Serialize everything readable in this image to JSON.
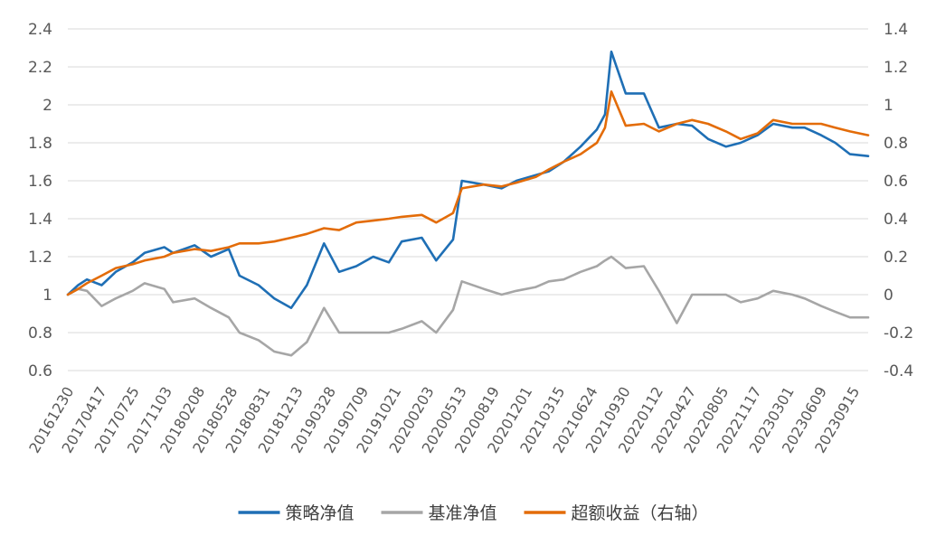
{
  "chart_data": {
    "type": "line",
    "title": "",
    "xlabel": "",
    "ylabel": "",
    "y2label": "",
    "grid": true,
    "legend_position": "bottom",
    "ylim": [
      0.6,
      2.4
    ],
    "y2lim": [
      -0.4,
      1.4
    ],
    "yticks": [
      "0.6",
      "0.8",
      "1",
      "1.2",
      "1.4",
      "1.6",
      "1.8",
      "2",
      "2.2",
      "2.4"
    ],
    "y2ticks": [
      "-0.4",
      "-0.2",
      "0",
      "0.2",
      "0.4",
      "0.6",
      "0.8",
      "1",
      "1.2",
      "1.4"
    ],
    "x_tick_labels": [
      "20161230",
      "20170417",
      "20170725",
      "20171103",
      "20180208",
      "20180528",
      "20180831",
      "20181213",
      "20190328",
      "20190709",
      "20191021",
      "20200203",
      "20200513",
      "20200819",
      "20201201",
      "20210315",
      "20210624",
      "20210930",
      "20220112",
      "20220427",
      "20220805",
      "20221117",
      "20230301",
      "20230609",
      "20230915"
    ],
    "x": [
      "20161230",
      "20170201",
      "20170301",
      "20170417",
      "20170601",
      "20170725",
      "20170901",
      "20171103",
      "20171201",
      "20180208",
      "20180401",
      "20180528",
      "20180701",
      "20180831",
      "20181020",
      "20181213",
      "20190201",
      "20190328",
      "20190515",
      "20190709",
      "20190901",
      "20191021",
      "20191201",
      "20200203",
      "20200320",
      "20200513",
      "20200610",
      "20200819",
      "20201015",
      "20201201",
      "20210201",
      "20210315",
      "20210501",
      "20210624",
      "20210815",
      "20210910",
      "20210930",
      "20211115",
      "20220112",
      "20220301",
      "20220427",
      "20220615",
      "20220805",
      "20221001",
      "20221117",
      "20230110",
      "20230301",
      "20230501",
      "20230609",
      "20230801",
      "20230915",
      "20231101",
      "20231229"
    ],
    "series": [
      {
        "name": "策略净值",
        "axis": "left",
        "color": "#1f6fb5",
        "values": [
          1.0,
          1.05,
          1.08,
          1.05,
          1.12,
          1.17,
          1.22,
          1.25,
          1.22,
          1.26,
          1.2,
          1.24,
          1.1,
          1.05,
          0.98,
          0.93,
          1.05,
          1.27,
          1.12,
          1.15,
          1.2,
          1.17,
          1.28,
          1.3,
          1.18,
          1.29,
          1.6,
          1.58,
          1.56,
          1.6,
          1.63,
          1.65,
          1.7,
          1.78,
          1.87,
          1.95,
          2.28,
          2.06,
          2.06,
          1.88,
          1.9,
          1.89,
          1.82,
          1.78,
          1.8,
          1.84,
          1.9,
          1.88,
          1.88,
          1.84,
          1.8,
          1.74,
          1.73
        ]
      },
      {
        "name": "基准净值",
        "axis": "left",
        "color": "#a6a6a6",
        "values": [
          1.0,
          1.03,
          1.02,
          0.94,
          0.98,
          1.02,
          1.06,
          1.03,
          0.96,
          0.98,
          0.93,
          0.88,
          0.8,
          0.76,
          0.7,
          0.68,
          0.75,
          0.93,
          0.8,
          0.8,
          0.8,
          0.8,
          0.82,
          0.86,
          0.8,
          0.92,
          1.07,
          1.03,
          1.0,
          1.02,
          1.04,
          1.07,
          1.08,
          1.12,
          1.15,
          1.18,
          1.2,
          1.14,
          1.15,
          1.02,
          0.85,
          1.0,
          1.0,
          1.0,
          0.96,
          0.98,
          1.02,
          1.0,
          0.98,
          0.94,
          0.91,
          0.88,
          0.88
        ]
      },
      {
        "name": "超额收益（右轴）",
        "axis": "right",
        "color": "#e36c09",
        "values": [
          0.0,
          0.03,
          0.06,
          0.1,
          0.14,
          0.16,
          0.18,
          0.2,
          0.22,
          0.24,
          0.23,
          0.25,
          0.27,
          0.27,
          0.28,
          0.3,
          0.32,
          0.35,
          0.34,
          0.38,
          0.39,
          0.4,
          0.41,
          0.42,
          0.38,
          0.43,
          0.56,
          0.58,
          0.57,
          0.59,
          0.62,
          0.66,
          0.7,
          0.74,
          0.8,
          0.88,
          1.07,
          0.89,
          0.9,
          0.86,
          0.9,
          0.92,
          0.9,
          0.86,
          0.82,
          0.85,
          0.92,
          0.9,
          0.9,
          0.9,
          0.88,
          0.86,
          0.84
        ]
      }
    ]
  }
}
